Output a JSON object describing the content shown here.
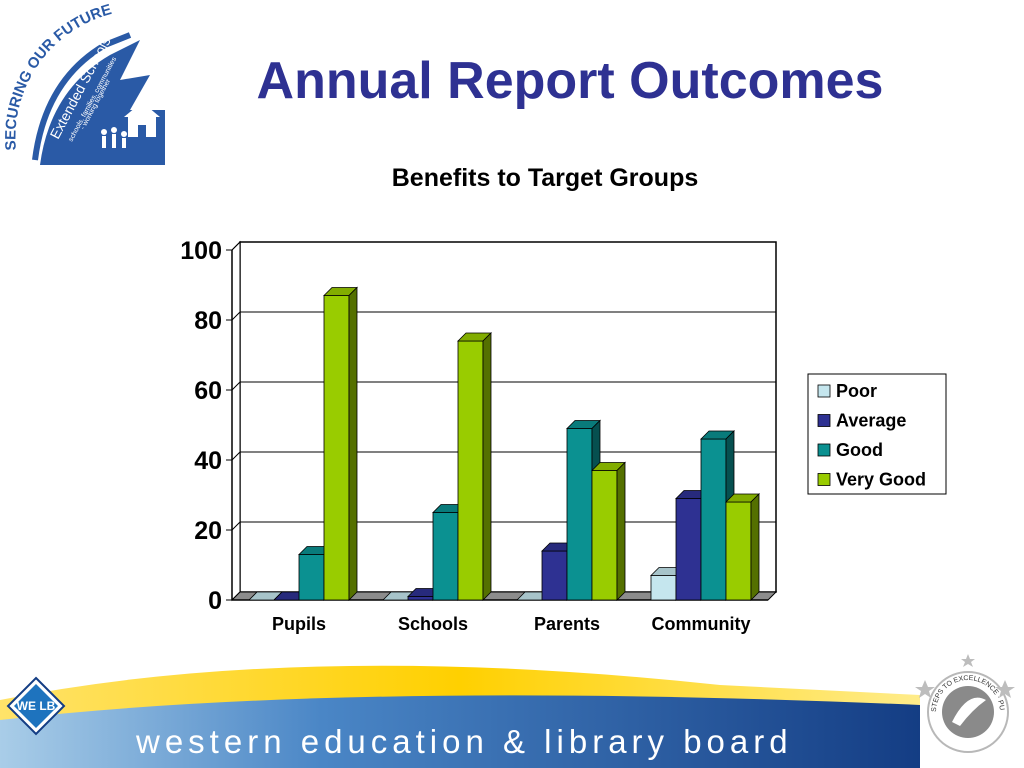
{
  "header": {
    "title": "Annual Report Outcomes",
    "logo": {
      "icon": "securing-our-future-logo",
      "text_outer": "SECURING OUR FUTURE",
      "text_main": "Extended Schools",
      "text_sub1": "schools, families, communities",
      "text_sub2": "- working together"
    }
  },
  "chart_data": {
    "type": "bar",
    "title": "Benefits to Target Groups",
    "categories": [
      "Pupils",
      "Schools",
      "Parents",
      "Community"
    ],
    "series": [
      {
        "name": "Poor",
        "values": [
          0,
          0,
          0,
          7
        ],
        "color": "#c5e6ee"
      },
      {
        "name": "Average",
        "values": [
          0,
          1,
          14,
          29
        ],
        "color": "#2e3192"
      },
      {
        "name": "Good",
        "values": [
          13,
          25,
          49,
          46
        ],
        "color": "#0b9191"
      },
      {
        "name": "Very Good",
        "values": [
          87,
          74,
          37,
          28
        ],
        "color": "#99cc00"
      }
    ],
    "ylim": [
      0,
      100
    ],
    "yticks": [
      0,
      20,
      40,
      60,
      80,
      100
    ],
    "grid": true,
    "legend": "right"
  },
  "footer": {
    "org_name": "western education & library board",
    "logo_text": "WE LB",
    "badge_text": "STEPS TO EXCELLENCE · PUBLIC SECTOR ·"
  }
}
